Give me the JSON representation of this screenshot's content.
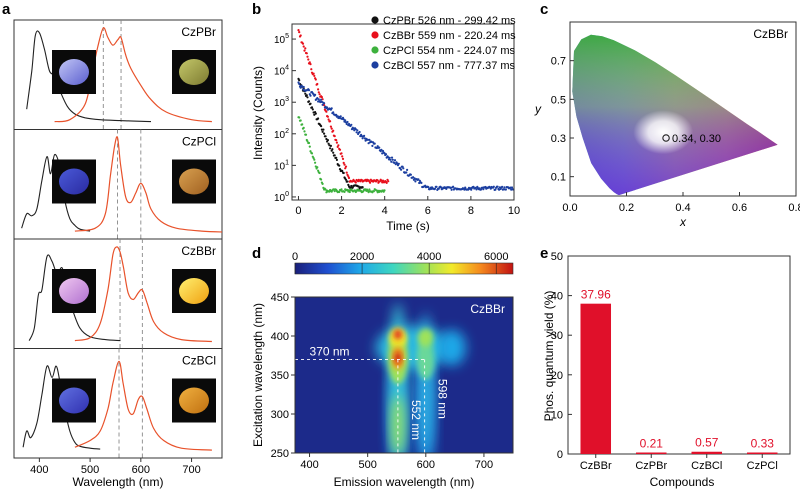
{
  "panels": {
    "a": {
      "label": "a",
      "xlabel": "Wavelength (nm)",
      "xticks": [
        "400",
        "500",
        "600",
        "700"
      ],
      "rows": [
        {
          "name": "CzPBr",
          "dashed": [
            526,
            561
          ]
        },
        {
          "name": "CzPCl",
          "dashed": [
            554,
            600
          ]
        },
        {
          "name": "CzBBr",
          "dashed": [
            559,
            603
          ]
        },
        {
          "name": "CzBCl",
          "dashed": [
            557,
            603
          ]
        }
      ],
      "colors": {
        "absorption": "#222222",
        "emission": "#e8522b"
      }
    },
    "b": {
      "label": "b",
      "xlabel": "Time (s)",
      "ylabel": "Intensity (Counts)"
    },
    "c": {
      "label": "c",
      "title": "CzBBr",
      "xlabel": "x",
      "ylabel": "y"
    },
    "d": {
      "label": "d",
      "title": "CzBBr",
      "xlabel": "Emission wavelength (nm)",
      "ylabel": "Excitation wavelength (nm)"
    },
    "e": {
      "label": "e",
      "xlabel": "Compounds",
      "ylabel": "Phos. quantum yield (%)"
    }
  },
  "chart_data": [
    {
      "type": "line",
      "panel": "a",
      "xlim": [
        350,
        760
      ],
      "series": [
        {
          "name": "CzPBr",
          "absorption": {
            "x": [
              375,
              385,
              392,
              400,
              410,
              420,
              430,
              440,
              455,
              470,
              490,
              520,
              560,
              620
            ],
            "y": [
              0.15,
              0.55,
              0.92,
              0.95,
              0.78,
              0.55,
              0.5,
              0.35,
              0.18,
              0.1,
              0.06,
              0.04,
              0.03,
              0.02
            ]
          },
          "emission": {
            "x": [
              430,
              460,
              490,
              505,
              515,
              526,
              535,
              545,
              555,
              561,
              570,
              580,
              600,
              620,
              650,
              700,
              740
            ],
            "y": [
              0.02,
              0.04,
              0.2,
              0.55,
              0.8,
              1.0,
              0.9,
              0.82,
              0.88,
              0.9,
              0.72,
              0.58,
              0.4,
              0.25,
              0.12,
              0.04,
              0.02
            ]
          }
        },
        {
          "name": "CzPCl",
          "absorption": {
            "x": [
              365,
              375,
              385,
              395,
              405,
              415,
              422,
              430,
              440,
              450,
              460,
              470,
              480,
              500
            ],
            "y": [
              0.05,
              0.2,
              0.18,
              0.25,
              0.55,
              0.8,
              0.62,
              0.82,
              0.7,
              0.35,
              0.15,
              0.08,
              0.04,
              0.02
            ]
          },
          "emission": {
            "x": [
              470,
              510,
              530,
              540,
              548,
              554,
              560,
              570,
              580,
              590,
              600,
              610,
              620,
              640,
              670,
              720,
              760
            ],
            "y": [
              0.02,
              0.05,
              0.2,
              0.6,
              0.9,
              1.0,
              0.72,
              0.38,
              0.32,
              0.42,
              0.52,
              0.42,
              0.25,
              0.12,
              0.05,
              0.02,
              0.01
            ]
          }
        },
        {
          "name": "CzBBr",
          "absorption": {
            "x": [
              380,
              390,
              398,
              405,
              415,
              425,
              435,
              445,
              455,
              465,
              480,
              500,
              530,
              560
            ],
            "y": [
              0.02,
              0.15,
              0.5,
              0.55,
              0.9,
              0.85,
              0.72,
              0.78,
              0.55,
              0.35,
              0.15,
              0.06,
              0.03,
              0.02
            ]
          },
          "emission": {
            "x": [
              470,
              500,
              520,
              535,
              545,
              552,
              559,
              566,
              575,
              585,
              595,
              603,
              612,
              625,
              645,
              680,
              740
            ],
            "y": [
              0.02,
              0.05,
              0.2,
              0.55,
              0.92,
              1.0,
              0.95,
              0.78,
              0.52,
              0.45,
              0.52,
              0.55,
              0.42,
              0.22,
              0.1,
              0.03,
              0.01
            ]
          }
        },
        {
          "name": "CzBCl",
          "absorption": {
            "x": [
              368,
              375,
              383,
              395,
              405,
              415,
              425,
              433,
              440,
              450,
              460,
              470,
              480,
              500,
              520
            ],
            "y": [
              0.05,
              0.22,
              0.15,
              0.3,
              0.6,
              0.9,
              0.78,
              0.9,
              0.75,
              0.45,
              0.22,
              0.1,
              0.06,
              0.04,
              0.03
            ]
          },
          "emission": {
            "x": [
              470,
              500,
              520,
              535,
              545,
              557,
              565,
              575,
              585,
              595,
              603,
              612,
              625,
              645,
              680,
              740
            ],
            "y": [
              0.05,
              0.12,
              0.22,
              0.45,
              0.72,
              0.95,
              0.72,
              0.45,
              0.4,
              0.55,
              0.58,
              0.45,
              0.25,
              0.12,
              0.04,
              0.02
            ]
          }
        }
      ]
    },
    {
      "type": "scatter",
      "panel": "b",
      "title": "",
      "xlabel": "Time (s)",
      "ylabel": "Intensity (Counts)",
      "xlim": [
        -0.3,
        10
      ],
      "ylim": [
        0.8,
        300000
      ],
      "yscale": "log",
      "xticks": [
        0,
        2,
        4,
        6,
        8,
        10
      ],
      "yticks": [
        "10^0",
        "10^1",
        "10^2",
        "10^3",
        "10^4",
        "10^5"
      ],
      "legend_position": "top-right",
      "series": [
        {
          "name": "CzPBr 526 nm - 299.42 ms",
          "color": "#111111",
          "I0": 5500,
          "tau": 0.29942,
          "end": 3.0,
          "floor": 2
        },
        {
          "name": "CzBBr 559 nm - 220.24 ms",
          "color": "#e8101c",
          "I0": 180000,
          "tau": 0.22024,
          "end": 4.2,
          "floor": 3
        },
        {
          "name": "CzPCl 554 nm - 224.07 ms",
          "color": "#3db13d",
          "I0": 400,
          "tau": 0.22407,
          "end": 4.0,
          "floor": 1.5
        },
        {
          "name": "CzBCl 557 nm - 777.37 ms",
          "color": "#1c3fa0",
          "I0": 4000,
          "tau": 0.77737,
          "end": 10,
          "floor": 1.8
        }
      ]
    },
    {
      "type": "scatter",
      "panel": "c",
      "title": "CzBBr",
      "xlabel": "x",
      "ylabel": "y",
      "xlim": [
        0.0,
        0.8
      ],
      "ylim": [
        0.0,
        0.9
      ],
      "xticks": [
        "0.0",
        "0.2",
        "0.4",
        "0.6",
        "0.8"
      ],
      "yticks": [
        "0.1",
        "0.3",
        "0.5",
        "0.7"
      ],
      "point": {
        "x": 0.34,
        "y": 0.3,
        "label": "0.34, 0.30"
      }
    },
    {
      "type": "heatmap",
      "panel": "d",
      "title": "CzBBr",
      "xlabel": "Emission wavelength (nm)",
      "ylabel": "Excitation wavelength (nm)",
      "xlim": [
        375,
        750
      ],
      "ylim": [
        250,
        450
      ],
      "xticks": [
        "400",
        "500",
        "600",
        "700"
      ],
      "yticks": [
        "250",
        "300",
        "350",
        "400",
        "450"
      ],
      "colorbar": {
        "min": 0,
        "max": 6500,
        "ticks": [
          "0",
          "2000",
          "4000",
          "6000"
        ]
      },
      "annotations": [
        {
          "text": "370 nm",
          "axis": "y",
          "value": 370
        },
        {
          "text": "552 nm",
          "axis": "x",
          "value": 552
        },
        {
          "text": "598 nm",
          "axis": "x",
          "value": 598
        }
      ]
    },
    {
      "type": "bar",
      "panel": "e",
      "xlabel": "Compounds",
      "ylabel": "Phos. quantum yield (%)",
      "ylim": [
        0,
        50
      ],
      "yticks": [
        "0",
        "10",
        "20",
        "30",
        "40",
        "50"
      ],
      "categories": [
        "CzBBr",
        "CzPBr",
        "CzBCl",
        "CzPCl"
      ],
      "values": [
        37.96,
        0.21,
        0.57,
        0.33
      ],
      "value_labels": [
        "37.96",
        "0.21",
        "0.57",
        "0.33"
      ],
      "color": "#e0102a"
    }
  ]
}
